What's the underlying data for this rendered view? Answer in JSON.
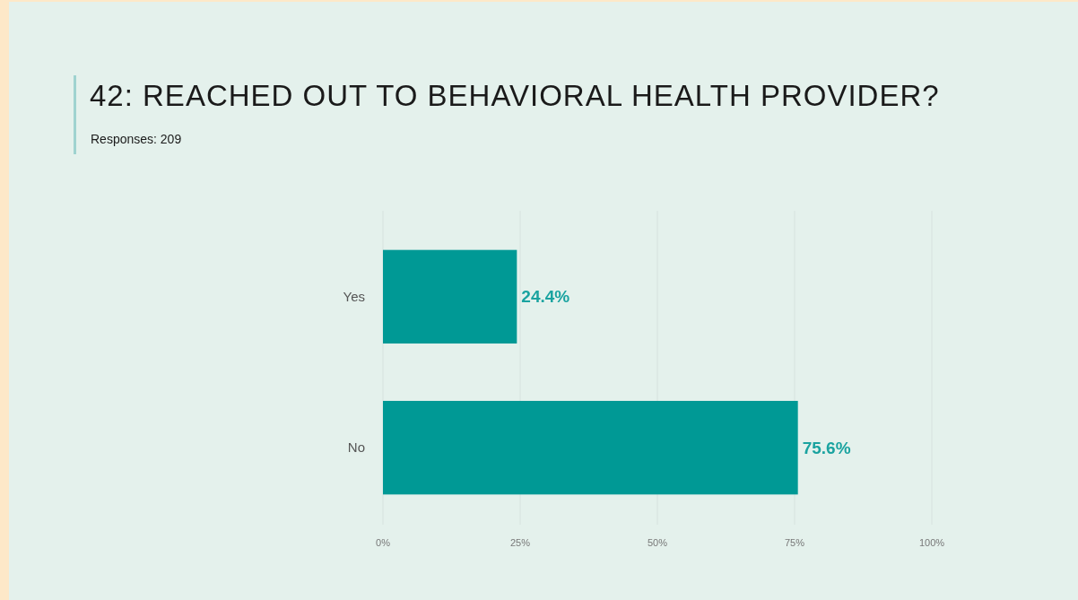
{
  "chart_data": {
    "type": "bar",
    "orientation": "horizontal",
    "title": "42: REACHED OUT TO BEHAVIORAL HEALTH PROVIDER?",
    "subtitle": "Responses: 209",
    "categories": [
      "Yes",
      "No"
    ],
    "values": [
      24.4,
      75.6
    ],
    "color": "#009995",
    "value_labels": [
      "24.4%",
      "75.6%"
    ],
    "xlim": [
      0,
      100
    ],
    "xticks": [
      {
        "value": 0,
        "label": "0%"
      },
      {
        "value": 25,
        "label": "25%"
      },
      {
        "value": 50,
        "label": "50%"
      },
      {
        "value": 75,
        "label": "75%"
      },
      {
        "value": 100,
        "label": "100%"
      }
    ],
    "grid": "x"
  }
}
